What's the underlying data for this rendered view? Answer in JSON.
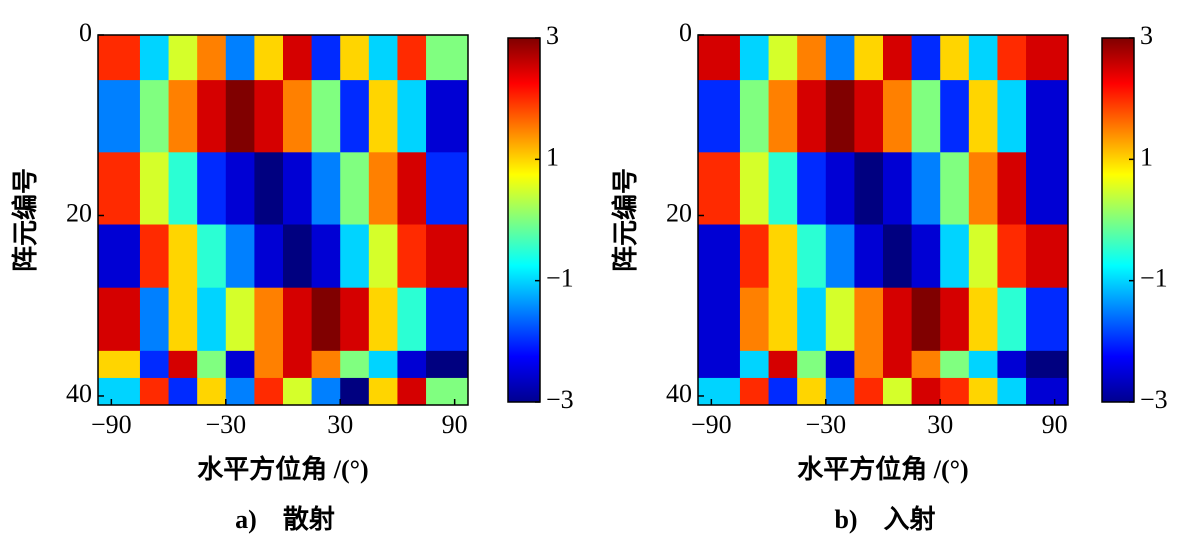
{
  "chart_data": [
    {
      "type": "heatmap",
      "caption": "a)　散射",
      "xlabel": "水平方位角 /(°)",
      "ylabel": "阵元编号",
      "colormap": "jet",
      "xbins": [
        -97,
        -75,
        -60,
        -45,
        -30,
        -15,
        0,
        15,
        30,
        45,
        60,
        75,
        97
      ],
      "ybins": [
        0,
        5,
        13,
        21,
        28,
        35,
        38,
        41
      ],
      "values": [
        [
          2,
          -1,
          0.5,
          1.5,
          -1.5,
          1,
          2.5,
          -2,
          1,
          -1,
          2,
          0
        ],
        [
          -1.5,
          0,
          1.5,
          2.5,
          3,
          2.5,
          1.5,
          0,
          -2,
          1,
          -1,
          -2.5
        ],
        [
          2,
          0.5,
          -0.5,
          -2,
          -2.5,
          -3,
          -2.5,
          -1.5,
          0,
          1.5,
          2.5,
          -2
        ],
        [
          -2.5,
          2,
          1,
          -0.5,
          -1.5,
          -2.5,
          -3,
          -2.5,
          -1,
          0.5,
          2,
          2.5
        ],
        [
          2.5,
          -1.5,
          1,
          -1,
          0.5,
          1.5,
          2.5,
          3,
          2.5,
          1,
          -0.5,
          -2
        ],
        [
          1,
          -2,
          2.5,
          0,
          -2.5,
          1.5,
          2.5,
          1.5,
          0,
          -1,
          -2.5,
          -3
        ],
        [
          -1,
          2,
          -2,
          1,
          -1.5,
          2,
          0.5,
          -1.5,
          -3,
          1,
          2.5,
          0
        ]
      ],
      "xlim": [
        -97,
        97
      ],
      "ylim": [
        0,
        41
      ],
      "reverse_y": true,
      "clim": [
        -3,
        3
      ],
      "xticks": [
        {
          "value": -90,
          "label": "−90"
        },
        {
          "value": -30,
          "label": "−30"
        },
        30,
        90
      ],
      "yticks": [
        0,
        20,
        40
      ],
      "cticks": [
        {
          "value": -3,
          "label": "−3"
        },
        {
          "value": -1,
          "label": "−1"
        },
        1,
        3
      ]
    },
    {
      "type": "heatmap",
      "caption": "b)　入射",
      "xlabel": "水平方位角 /(°)",
      "ylabel": "阵元编号",
      "colormap": "jet",
      "xbins": [
        -97,
        -75,
        -60,
        -45,
        -30,
        -15,
        0,
        15,
        30,
        45,
        60,
        75,
        97
      ],
      "ybins": [
        0,
        5,
        13,
        21,
        28,
        35,
        38,
        41
      ],
      "values": [
        [
          2.5,
          -1,
          0.5,
          1.5,
          -1.5,
          1,
          2.5,
          -2,
          1,
          -1,
          2,
          2.5
        ],
        [
          -2,
          0,
          1.5,
          2.5,
          3,
          2.5,
          1.5,
          0,
          -2,
          1,
          -1,
          -2.5
        ],
        [
          2,
          0.5,
          -0.5,
          -2,
          -2.5,
          -3,
          -2.5,
          -1.5,
          0,
          1.5,
          2.5,
          -2.5
        ],
        [
          -2.5,
          2,
          1,
          -0.5,
          -1.5,
          -2.5,
          -3,
          -2.5,
          -1,
          0.5,
          2,
          2.5
        ],
        [
          -2.5,
          1.5,
          1,
          -1,
          0.5,
          1.5,
          2.5,
          3,
          2.5,
          1,
          -0.5,
          -2
        ],
        [
          -2.5,
          -1,
          2.5,
          0,
          -2.5,
          1.5,
          2.5,
          1.5,
          0,
          -1,
          -2.5,
          -3
        ],
        [
          -1,
          2,
          -2,
          1,
          -1.5,
          2,
          0.5,
          2.5,
          2,
          1,
          -1,
          -2.5
        ]
      ],
      "xlim": [
        -97,
        97
      ],
      "ylim": [
        0,
        41
      ],
      "reverse_y": true,
      "clim": [
        -3,
        3
      ],
      "xticks": [
        {
          "value": -90,
          "label": "−90"
        },
        {
          "value": -30,
          "label": "−30"
        },
        30,
        90
      ],
      "yticks": [
        0,
        20,
        40
      ],
      "cticks": [
        {
          "value": -3,
          "label": "−3"
        },
        {
          "value": -1,
          "label": "−1"
        },
        1,
        3
      ]
    }
  ]
}
